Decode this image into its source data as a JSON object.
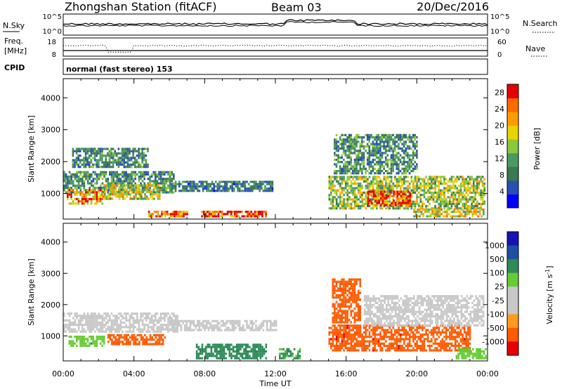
{
  "header": {
    "title": "Zhongshan Station (fitACF)",
    "beam": "Beam 03",
    "date": "20/Dec/2016"
  },
  "noise_panel": {
    "left_label": "N.Sky",
    "left_ticks": [
      "10^5",
      "10^0"
    ],
    "right_label": "N.Search",
    "right_ticks": [
      "10^5",
      "10^0"
    ]
  },
  "freq_panel": {
    "left_label_1": "Freq.",
    "left_label_2": "[MHz]",
    "left_ticks": [
      "18",
      "8"
    ],
    "right_label": "Nave",
    "right_ticks": [
      "60",
      "0"
    ]
  },
  "cpid": {
    "label": "CPID",
    "text": "normal (fast stereo) 153"
  },
  "colors": {
    "power_scale": [
      "#0000ff",
      "#2850b4",
      "#3c7850",
      "#4a9a62",
      "#8cc83c",
      "#e8d400",
      "#ff9b00",
      "#ff6a00",
      "#e60000"
    ],
    "velocity_scale": [
      "#e60000",
      "#ff5a00",
      "#ff9b1e",
      "#c8c8c8",
      "#c8c8c8",
      "#66cc33",
      "#2e8b57",
      "#1e4fa0",
      "#1414b4"
    ]
  },
  "chart_data": [
    {
      "type": "heatmap",
      "name": "power_panel",
      "ylabel": "Slant Range [km]",
      "xlabel": "Time UT",
      "x_ticks": [
        "00:00",
        "04:00",
        "08:00",
        "12:00",
        "16:00",
        "20:00",
        "00:00"
      ],
      "y_ticks": [
        1000,
        2000,
        3000,
        4000
      ],
      "ylim": [
        200,
        4600
      ],
      "xlim": [
        0,
        24
      ],
      "colorbar": {
        "label": "Power [dB]",
        "ticks": [
          4,
          8,
          12,
          16,
          20,
          24,
          28
        ],
        "range": [
          0,
          30
        ]
      },
      "regions": [
        {
          "t0": 0.0,
          "t1": 6.2,
          "r0": 1000,
          "r1": 1700,
          "value": 10
        },
        {
          "t0": 0.2,
          "t1": 2.2,
          "r0": 650,
          "r1": 1100,
          "value": 22
        },
        {
          "t0": 2.2,
          "t1": 5.5,
          "r0": 800,
          "r1": 1250,
          "value": 17
        },
        {
          "t0": 6.0,
          "t1": 11.8,
          "r0": 1050,
          "r1": 1400,
          "value": 8
        },
        {
          "t0": 7.8,
          "t1": 11.5,
          "r0": 250,
          "r1": 450,
          "value": 28
        },
        {
          "t0": 4.8,
          "t1": 7.0,
          "r0": 250,
          "r1": 420,
          "value": 25
        },
        {
          "t0": 15.0,
          "t1": 23.8,
          "r0": 500,
          "r1": 1500,
          "value": 15
        },
        {
          "t0": 17.2,
          "t1": 19.6,
          "r0": 600,
          "r1": 1050,
          "value": 28
        },
        {
          "t0": 15.3,
          "t1": 20.0,
          "r0": 1600,
          "r1": 2800,
          "value": 10
        },
        {
          "t0": 19.8,
          "t1": 23.8,
          "r0": 250,
          "r1": 500,
          "value": 18
        },
        {
          "t0": 0.5,
          "t1": 4.8,
          "r0": 1800,
          "r1": 2400,
          "value": 9
        }
      ]
    },
    {
      "type": "heatmap",
      "name": "velocity_panel",
      "ylabel": "Slant Range [km]",
      "xlabel": "Time UT",
      "x_ticks": [
        "00:00",
        "04:00",
        "08:00",
        "12:00",
        "16:00",
        "20:00",
        "00:00"
      ],
      "y_ticks": [
        1000,
        2000,
        3000,
        4000
      ],
      "ylim": [
        200,
        4600
      ],
      "xlim": [
        0,
        24
      ],
      "colorbar": {
        "label": "Velocity [m s^-1]",
        "ticks": [
          1000,
          500,
          100,
          25,
          -25,
          -100,
          -500,
          -1000
        ]
      },
      "regions": [
        {
          "t0": 0.0,
          "t1": 6.5,
          "r0": 1100,
          "r1": 1700,
          "value": 0
        },
        {
          "t0": 6.0,
          "t1": 12.0,
          "r0": 1150,
          "r1": 1450,
          "value": 0
        },
        {
          "t0": 2.5,
          "t1": 5.8,
          "r0": 700,
          "r1": 1050,
          "value": -300
        },
        {
          "t0": 7.5,
          "t1": 11.5,
          "r0": 250,
          "r1": 700,
          "value": 150
        },
        {
          "t0": 0.3,
          "t1": 2.3,
          "r0": 650,
          "r1": 1000,
          "value": 80
        },
        {
          "t0": 15.0,
          "t1": 23.0,
          "r0": 500,
          "r1": 1300,
          "value": -400
        },
        {
          "t0": 15.2,
          "t1": 16.8,
          "r0": 1400,
          "r1": 2800,
          "value": -200
        },
        {
          "t0": 17.0,
          "t1": 23.8,
          "r0": 1300,
          "r1": 2300,
          "value": 0
        },
        {
          "t0": 22.2,
          "t1": 23.9,
          "r0": 250,
          "r1": 550,
          "value": 60
        },
        {
          "t0": 12.2,
          "t1": 13.4,
          "r0": 250,
          "r1": 550,
          "value": 120
        }
      ]
    }
  ]
}
